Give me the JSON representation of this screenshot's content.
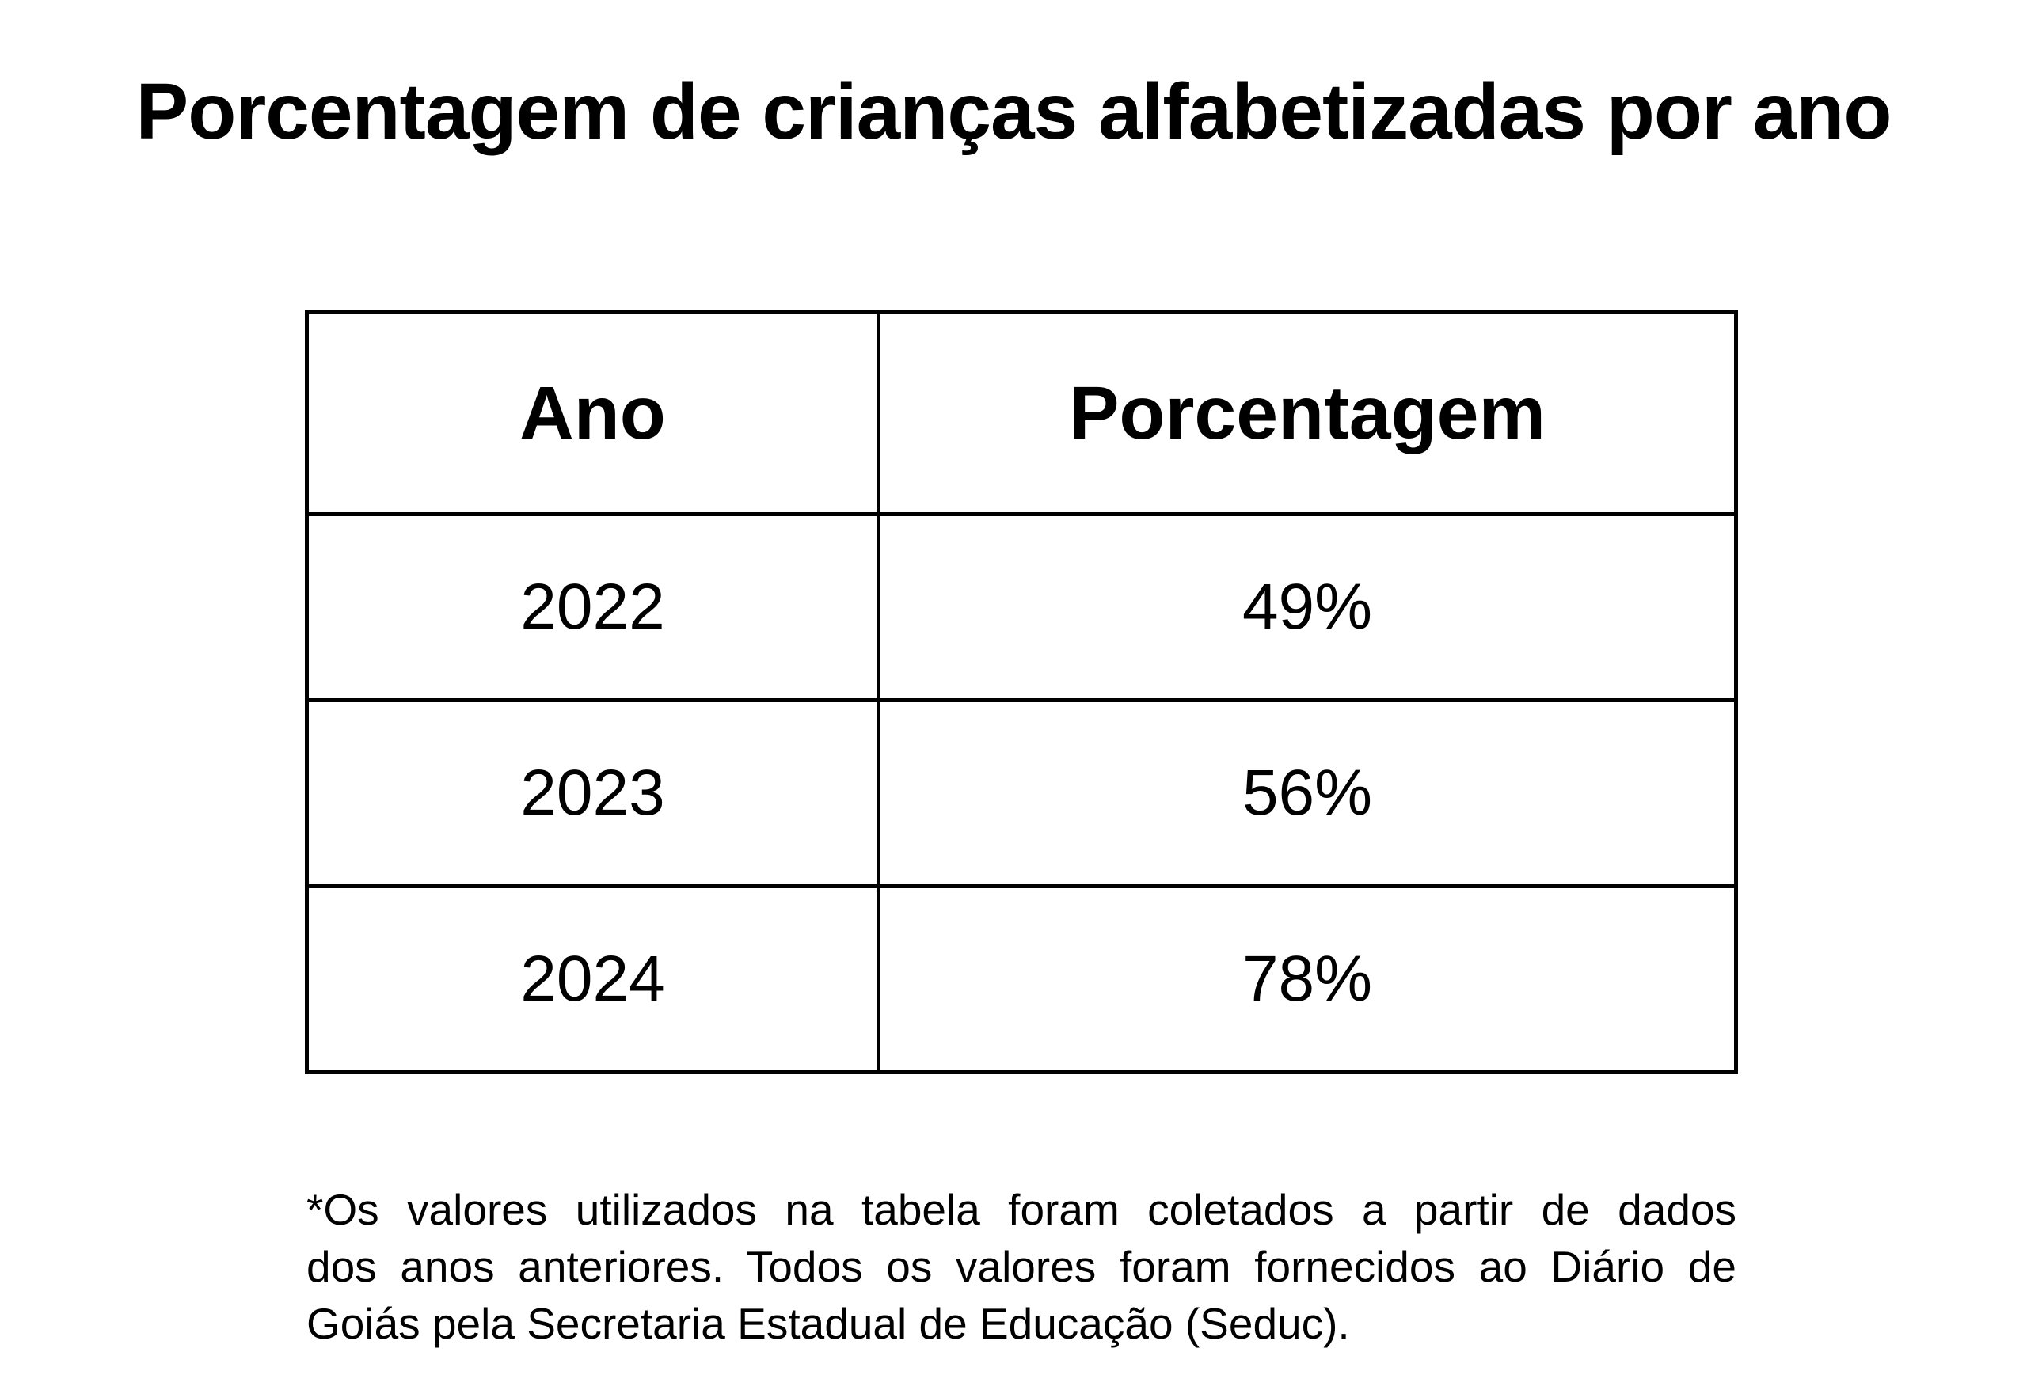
{
  "title": "Porcentagem de crianças alfabetizadas por ano",
  "table": {
    "columns": [
      "Ano",
      "Porcentagem"
    ],
    "rows": [
      {
        "year": "2022",
        "pct": "49%"
      },
      {
        "year": "2023",
        "pct": "56%"
      },
      {
        "year": "2024",
        "pct": "78%"
      }
    ]
  },
  "footnote": {
    "lines": [
      "*Os valores utilizados na tabela foram coletados a partir de dados",
      "dos anos anteriores. Todos os valores foram fornecidos ao Diário de",
      "Goiás pela Secretaria Estadual de Educação (Seduc)."
    ]
  },
  "colors": {
    "background": "#ffffff",
    "text": "#000000",
    "border": "#000000"
  },
  "chart_data": {
    "type": "table",
    "title": "Porcentagem de crianças alfabetizadas por ano",
    "columns": [
      "Ano",
      "Porcentagem"
    ],
    "categories": [
      "2022",
      "2023",
      "2024"
    ],
    "values": [
      49,
      56,
      78
    ],
    "unit": "%",
    "source_note": "*Os valores utilizados na tabela foram coletados a partir de dados dos anos anteriores. Todos os valores foram fornecidos ao Diário de Goiás pela Secretaria Estadual de Educação (Seduc)."
  }
}
